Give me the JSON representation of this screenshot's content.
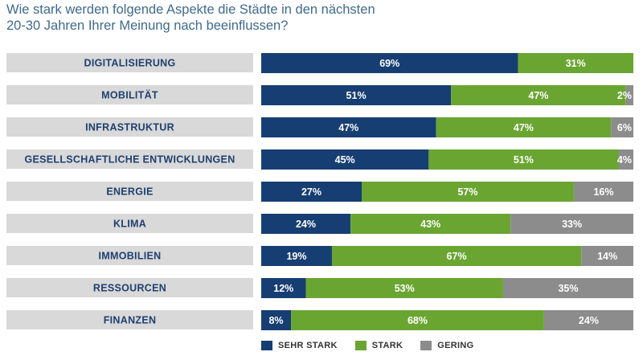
{
  "title": {
    "line1": "Wie stark werden folgende Aspekte die Städte in den nächsten",
    "line2": "20-30 Jahren Ihrer Meinung nach beeinflussen?"
  },
  "colors": {
    "sehr_stark": "#173e72",
    "stark": "#6aa532",
    "gering": "#8c8c8c",
    "label_background": "#d9d9d9",
    "label_text": "#1e3f6f"
  },
  "chart_data": {
    "type": "bar",
    "orientation": "horizontal",
    "stacked": true,
    "categories": [
      "DIGITALISIERUNG",
      "MOBILITÄT",
      "INFRASTRUKTUR",
      "GESELLSCHAFTLICHE ENTWICKLUNGEN",
      "ENERGIE",
      "KLIMA",
      "IMMOBILIEN",
      "RESSOURCEN",
      "FINANZEN"
    ],
    "series": [
      {
        "name": "SEHR STARK",
        "values": [
          69,
          51,
          47,
          45,
          27,
          24,
          19,
          12,
          8
        ]
      },
      {
        "name": "STARK",
        "values": [
          31,
          47,
          47,
          51,
          57,
          43,
          67,
          53,
          68
        ]
      },
      {
        "name": "GERING",
        "values": [
          0,
          2,
          6,
          4,
          16,
          33,
          14,
          35,
          24
        ]
      }
    ],
    "value_suffix": "%",
    "xlim": [
      0,
      100
    ],
    "grid": false,
    "legend_position": "bottom"
  }
}
